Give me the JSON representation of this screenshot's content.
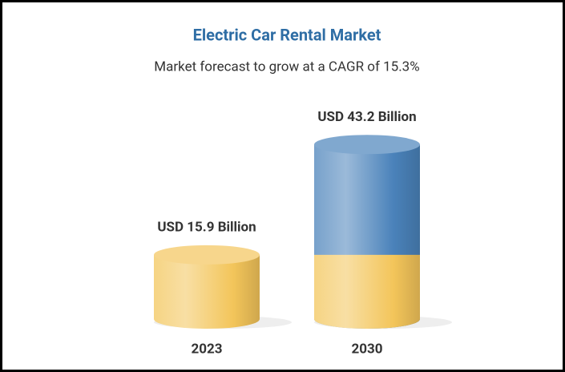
{
  "chart_data": {
    "type": "bar",
    "title": "Electric Car Rental Market",
    "subtitle": "Market forecast to grow at a CAGR of 15.3%",
    "categories": [
      "2023",
      "2030"
    ],
    "values": [
      15.9,
      43.2
    ],
    "value_labels": [
      "USD 15.9 Billion",
      "USD 43.2 Billion"
    ],
    "colors": [
      "#f3c55a",
      "#4a82ba"
    ]
  }
}
